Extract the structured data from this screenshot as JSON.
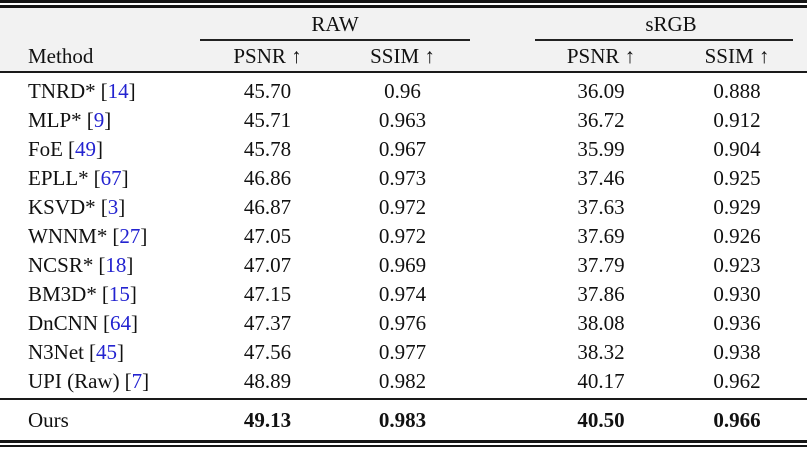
{
  "table": {
    "groups": [
      {
        "label": "RAW"
      },
      {
        "label": "sRGB"
      }
    ],
    "method_header": "Method",
    "metric_headers": [
      "PSNR ↑",
      "SSIM ↑",
      "PSNR ↑",
      "SSIM ↑"
    ],
    "citation_brackets": {
      "open": "[",
      "close": "]"
    },
    "rows": [
      {
        "method": "TNRD*",
        "cite": "14",
        "raw_psnr": "45.70",
        "raw_ssim": "0.96",
        "srgb_psnr": "36.09",
        "srgb_ssim": "0.888"
      },
      {
        "method": "MLP*",
        "cite": "9",
        "raw_psnr": "45.71",
        "raw_ssim": "0.963",
        "srgb_psnr": "36.72",
        "srgb_ssim": "0.912"
      },
      {
        "method": "FoE",
        "cite": "49",
        "raw_psnr": "45.78",
        "raw_ssim": "0.967",
        "srgb_psnr": "35.99",
        "srgb_ssim": "0.904"
      },
      {
        "method": "EPLL*",
        "cite": "67",
        "raw_psnr": "46.86",
        "raw_ssim": "0.973",
        "srgb_psnr": "37.46",
        "srgb_ssim": "0.925"
      },
      {
        "method": "KSVD*",
        "cite": "3",
        "raw_psnr": "46.87",
        "raw_ssim": "0.972",
        "srgb_psnr": "37.63",
        "srgb_ssim": "0.929"
      },
      {
        "method": "WNNM*",
        "cite": "27",
        "raw_psnr": "47.05",
        "raw_ssim": "0.972",
        "srgb_psnr": "37.69",
        "srgb_ssim": "0.926"
      },
      {
        "method": "NCSR*",
        "cite": "18",
        "raw_psnr": "47.07",
        "raw_ssim": "0.969",
        "srgb_psnr": "37.79",
        "srgb_ssim": "0.923"
      },
      {
        "method": "BM3D*",
        "cite": "15",
        "raw_psnr": "47.15",
        "raw_ssim": "0.974",
        "srgb_psnr": "37.86",
        "srgb_ssim": "0.930"
      },
      {
        "method": "DnCNN",
        "cite": "64",
        "raw_psnr": "47.37",
        "raw_ssim": "0.976",
        "srgb_psnr": "38.08",
        "srgb_ssim": "0.936"
      },
      {
        "method": "N3Net",
        "cite": "45",
        "raw_psnr": "47.56",
        "raw_ssim": "0.977",
        "srgb_psnr": "38.32",
        "srgb_ssim": "0.938"
      },
      {
        "method": "UPI (Raw)",
        "cite": "7",
        "raw_psnr": "48.89",
        "raw_ssim": "0.982",
        "srgb_psnr": "40.17",
        "srgb_ssim": "0.962"
      }
    ],
    "ours": {
      "method": "Ours",
      "raw_psnr": "49.13",
      "raw_ssim": "0.983",
      "srgb_psnr": "40.50",
      "srgb_ssim": "0.966"
    },
    "colors": {
      "citation_blue": "#2323d0",
      "header_bg": "#f2f2f2",
      "rule": "#151515",
      "text": "#111111"
    }
  },
  "chart_data": {
    "type": "table",
    "column_groups": [
      "RAW",
      "sRGB"
    ],
    "columns": [
      "Method",
      "RAW PSNR ↑",
      "RAW SSIM ↑",
      "sRGB PSNR ↑",
      "sRGB SSIM ↑"
    ],
    "rows": [
      [
        "TNRD* [14]",
        45.7,
        0.96,
        36.09,
        0.888
      ],
      [
        "MLP* [9]",
        45.71,
        0.963,
        36.72,
        0.912
      ],
      [
        "FoE [49]",
        45.78,
        0.967,
        35.99,
        0.904
      ],
      [
        "EPLL* [67]",
        46.86,
        0.973,
        37.46,
        0.925
      ],
      [
        "KSVD* [3]",
        46.87,
        0.972,
        37.63,
        0.929
      ],
      [
        "WNNM* [27]",
        47.05,
        0.972,
        37.69,
        0.926
      ],
      [
        "NCSR* [18]",
        47.07,
        0.969,
        37.79,
        0.923
      ],
      [
        "BM3D* [15]",
        47.15,
        0.974,
        37.86,
        0.93
      ],
      [
        "DnCNN [64]",
        47.37,
        0.976,
        38.08,
        0.936
      ],
      [
        "N3Net [45]",
        47.56,
        0.977,
        38.32,
        0.938
      ],
      [
        "UPI (Raw) [7]",
        48.89,
        0.982,
        40.17,
        0.962
      ],
      [
        "Ours",
        49.13,
        0.983,
        40.5,
        0.966
      ]
    ],
    "emphasis": "last row (Ours) values are bold"
  }
}
